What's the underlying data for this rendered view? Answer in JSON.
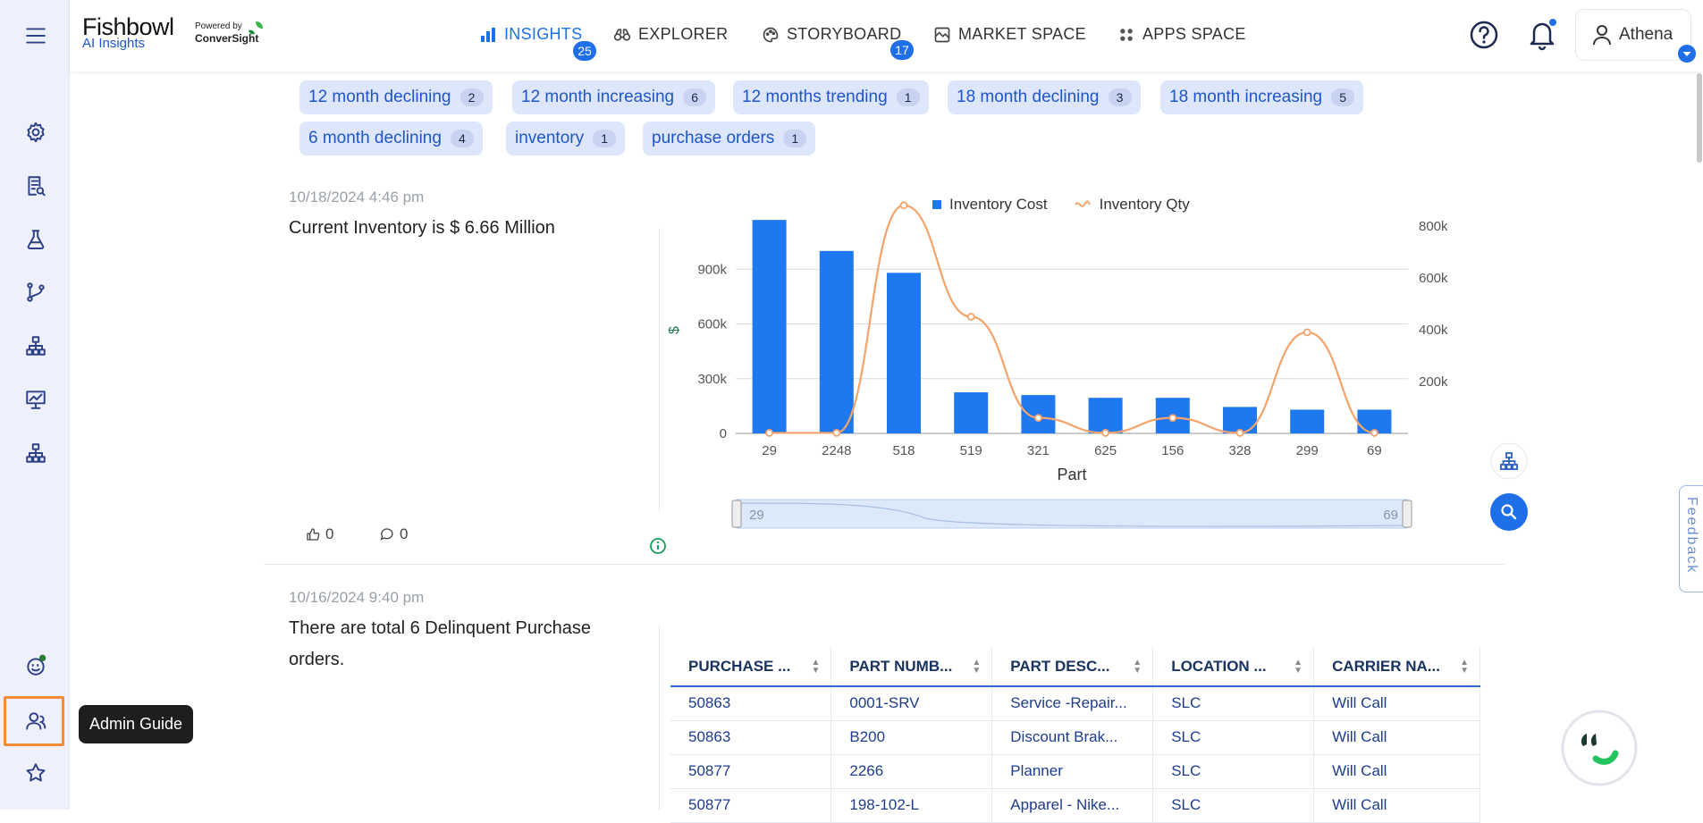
{
  "app": {
    "title": "Fishbowl",
    "subtitle": "AI Insights",
    "powered_by": "Powered by",
    "powered_brand": "ConverSight"
  },
  "nav": {
    "items": [
      {
        "label": "INSIGHTS",
        "icon": "bar-chart-icon",
        "badge": "25",
        "active": true
      },
      {
        "label": "EXPLORER",
        "icon": "binoculars-icon",
        "badge": null
      },
      {
        "label": "STORYBOARD",
        "icon": "palette-icon",
        "badge": "17"
      },
      {
        "label": "MARKET SPACE",
        "icon": "market-icon",
        "badge": null
      },
      {
        "label": "APPS SPACE",
        "icon": "apps-grid-icon",
        "badge": null
      }
    ],
    "user": "Athena"
  },
  "sidebar": {
    "tooltip": "Admin Guide"
  },
  "tags": [
    {
      "label": "12 month declining",
      "count": "2"
    },
    {
      "label": "12 month increasing",
      "count": "6"
    },
    {
      "label": "12 months trending",
      "count": "1"
    },
    {
      "label": "18 month declining",
      "count": "3"
    },
    {
      "label": "18 month increasing",
      "count": "5"
    },
    {
      "label": "6 month declining",
      "count": "4"
    },
    {
      "label": "inventory",
      "count": "1"
    },
    {
      "label": "purchase orders",
      "count": "1"
    }
  ],
  "insight1": {
    "timestamp": "10/18/2024 4:46 pm",
    "statement": "Current Inventory is $ 6.66 Million",
    "likes": "0",
    "comments": "0"
  },
  "chart_data": {
    "type": "bar",
    "categories": [
      "29",
      "2248",
      "518",
      "519",
      "321",
      "625",
      "156",
      "328",
      "299",
      "69"
    ],
    "series": [
      {
        "name": "Inventory Cost",
        "kind": "bar",
        "axis": "left",
        "color": "#1e78f0",
        "values": [
          1170000,
          1000000,
          880000,
          225000,
          210000,
          195000,
          195000,
          145000,
          130000,
          130000
        ]
      },
      {
        "name": "Inventory Qty",
        "kind": "line",
        "axis": "right",
        "color": "#f5a36b",
        "values": [
          2000,
          2000,
          880000,
          450000,
          60000,
          2000,
          60000,
          2000,
          390000,
          2000
        ]
      }
    ],
    "ylabel": "$",
    "xlabel": "Part",
    "ylim": [
      0,
      1200000
    ],
    "y_ticks": [
      "0",
      "300k",
      "600k",
      "900k"
    ],
    "y2lim": [
      0,
      900000
    ],
    "y2_ticks": [
      "200k",
      "400k",
      "600k",
      "800k"
    ],
    "legend": "top",
    "grid": true,
    "slider": {
      "start": "29",
      "end": "69"
    }
  },
  "insight2": {
    "timestamp": "10/16/2024 9:40 pm",
    "statement_line1": "There are total 6 Delinquent Purchase",
    "statement_line2": "orders.",
    "columns": [
      "PURCHASE ...",
      "PART NUMB...",
      "PART DESC...",
      "LOCATION ...",
      "CARRIER NA..."
    ],
    "rows": [
      [
        "50863",
        "0001-SRV",
        "Service -Repair...",
        "SLC",
        "Will Call"
      ],
      [
        "50863",
        "B200",
        "Discount Brak...",
        "SLC",
        "Will Call"
      ],
      [
        "50877",
        "2266",
        "Planner",
        "SLC",
        "Will Call"
      ],
      [
        "50877",
        "198-102-L",
        "Apparel - Nike...",
        "SLC",
        "Will Call"
      ]
    ]
  },
  "feedback": "Feedback",
  "colors": {
    "accent": "#1e6fe8",
    "sidebar_bg": "#eef0fb",
    "highlight": "#f28c38"
  }
}
